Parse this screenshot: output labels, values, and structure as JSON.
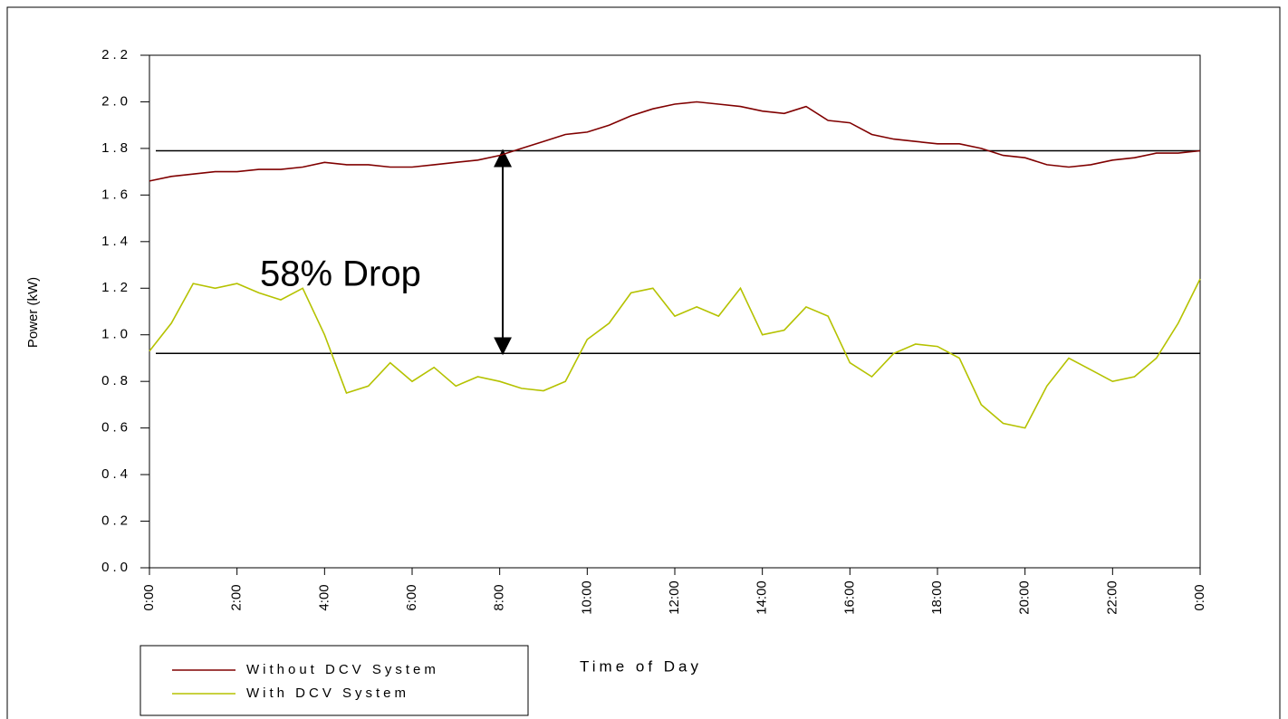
{
  "chart_data": {
    "type": "line",
    "x_label": "Time of Day",
    "y_label": "Power (kW)",
    "annotation": "58% Drop",
    "reference_lines": [
      1.79,
      0.92
    ],
    "arrow_x": 8.07,
    "xlim": [
      0,
      24
    ],
    "xticks": [
      {
        "value": 0,
        "label": "0:00"
      },
      {
        "value": 2,
        "label": "2:00"
      },
      {
        "value": 4,
        "label": "4:00"
      },
      {
        "value": 6,
        "label": "6:00"
      },
      {
        "value": 8,
        "label": "8:00"
      },
      {
        "value": 10,
        "label": "10:00"
      },
      {
        "value": 12,
        "label": "12:00"
      },
      {
        "value": 14,
        "label": "14:00"
      },
      {
        "value": 16,
        "label": "16:00"
      },
      {
        "value": 18,
        "label": "18:00"
      },
      {
        "value": 20,
        "label": "20:00"
      },
      {
        "value": 22,
        "label": "22:00"
      },
      {
        "value": 24,
        "label": "0:00"
      }
    ],
    "ylim": [
      0,
      2.2
    ],
    "yticks": [
      {
        "value": 0,
        "label": "0.0"
      },
      0.2,
      0.4,
      0.6,
      0.8,
      {
        "value": 1,
        "label": "1.0"
      },
      1.2,
      1.4,
      1.6,
      1.8,
      {
        "value": 2,
        "label": "2.0"
      },
      2.2
    ],
    "x": [
      0,
      0.5,
      1,
      1.5,
      2,
      2.5,
      3,
      3.5,
      4,
      4.5,
      5,
      5.5,
      6,
      6.5,
      7,
      7.5,
      8,
      8.5,
      9,
      9.5,
      10,
      10.5,
      11,
      11.5,
      12,
      12.5,
      13,
      13.5,
      14,
      14.5,
      15,
      15.5,
      16,
      16.5,
      17,
      17.5,
      18,
      18.5,
      19,
      19.5,
      20,
      20.5,
      21,
      21.5,
      22,
      22.5,
      23,
      23.5,
      24
    ],
    "series": [
      {
        "name": "Without DCV System",
        "color": "#800000",
        "values": [
          1.66,
          1.68,
          1.69,
          1.7,
          1.7,
          1.71,
          1.71,
          1.72,
          1.74,
          1.73,
          1.73,
          1.72,
          1.72,
          1.73,
          1.74,
          1.75,
          1.77,
          1.8,
          1.83,
          1.86,
          1.87,
          1.9,
          1.94,
          1.97,
          1.99,
          2.0,
          1.99,
          1.98,
          1.96,
          1.95,
          1.98,
          1.92,
          1.91,
          1.86,
          1.84,
          1.83,
          1.82,
          1.82,
          1.8,
          1.77,
          1.76,
          1.73,
          1.72,
          1.73,
          1.75,
          1.76,
          1.78,
          1.78,
          1.79
        ]
      },
      {
        "name": "With DCV System",
        "color": "#b5c200",
        "values": [
          0.93,
          1.05,
          1.22,
          1.2,
          1.22,
          1.18,
          1.15,
          1.2,
          1.0,
          0.75,
          0.78,
          0.88,
          0.8,
          0.86,
          0.78,
          0.82,
          0.8,
          0.77,
          0.76,
          0.8,
          0.98,
          1.05,
          1.18,
          1.2,
          1.08,
          1.12,
          1.08,
          1.2,
          1.0,
          1.02,
          1.12,
          1.08,
          0.88,
          0.82,
          0.92,
          0.96,
          0.95,
          0.9,
          0.7,
          0.62,
          0.6,
          0.78,
          0.9,
          0.85,
          0.8,
          0.82,
          0.9,
          1.05,
          1.24
        ]
      }
    ]
  }
}
